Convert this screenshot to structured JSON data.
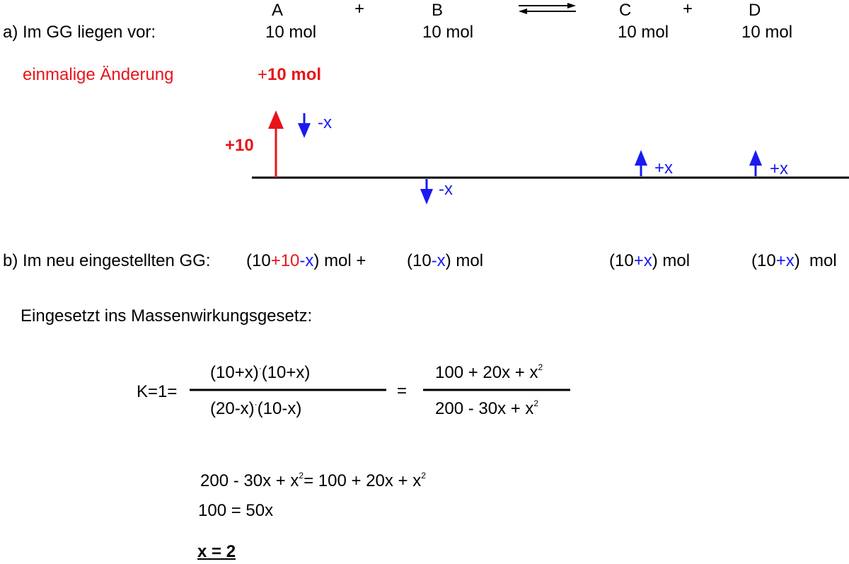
{
  "equation": {
    "species": [
      "A",
      "B",
      "C",
      "D"
    ],
    "plus": "+"
  },
  "part_a": {
    "label": "a) Im GG liegen vor:",
    "amounts": [
      "10 mol",
      "10 mol",
      "10 mol",
      "10 mol"
    ]
  },
  "change": {
    "label": "einmalige Änderung",
    "amount_sign": "+",
    "amount_value": "10 mol",
    "arrow_label": "+10",
    "arrow_labels": {
      "a": "-x",
      "b": "-x",
      "c": "+x",
      "d": "+x"
    }
  },
  "part_b": {
    "label": "b) Im neu eingestellten GG:",
    "a_expr": {
      "open": "(10",
      "plus10": "+10",
      "minus_x": "-x",
      "close": ") mol +"
    },
    "b_expr": {
      "open": "(10",
      "minus_x": "-x",
      "close": ") mol"
    },
    "c_expr": {
      "open": "(10",
      "plus_x": "+x",
      "close": ") mol"
    },
    "d_expr": {
      "open": "(10",
      "plus_x": "+x",
      "close": ")  mol"
    }
  },
  "mwg_label": "Eingesetzt ins Massenwirkungsgesetz:",
  "fraction": {
    "lhs": "K=1=",
    "num1_a": "(10+x)",
    "dot": "·",
    "num1_b": "(10+x)",
    "den1_a": "(20-x)",
    "den1_b": "(10-x)",
    "equals": "=",
    "num2": "100 + 20x + x",
    "den2": "200 - 30x + x",
    "exp": "2"
  },
  "solution": {
    "line1_a": "200 - 30x + x",
    "line1_b": "= 100 + 20x + x",
    "line2": "100 = 50x",
    "result": "x = 2"
  },
  "colors": {
    "red": "#e8141a",
    "blue": "#1a1af0",
    "black": "#000000"
  }
}
